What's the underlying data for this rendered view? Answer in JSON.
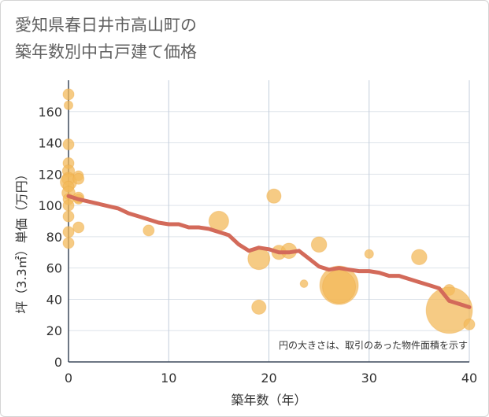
{
  "title_line1": "愛知県春日井市高山町の",
  "title_line2": "築年数別中古戸建て価格",
  "chart_data": {
    "type": "scatter",
    "title": "愛知県春日井市高山町の築年数別中古戸建て価格",
    "xlabel": "築年数（年）",
    "ylabel": "坪（3.3㎡）単価（万円）",
    "xlim": [
      0,
      40
    ],
    "ylim": [
      0,
      180
    ],
    "xticks": [
      0,
      10,
      20,
      30,
      40
    ],
    "yticks": [
      0,
      20,
      40,
      60,
      80,
      100,
      120,
      140,
      160
    ],
    "grid": true,
    "note": "円の大きさは、取引のあった物件面積を示す",
    "bubble_color": "#f3b95b",
    "line_color": "#d36a5a",
    "bubbles": [
      {
        "x": 0,
        "y": 171,
        "size": 1.0
      },
      {
        "x": 0,
        "y": 164,
        "size": 0.8
      },
      {
        "x": 0,
        "y": 139,
        "size": 1.0
      },
      {
        "x": 0,
        "y": 127,
        "size": 1.0
      },
      {
        "x": 0,
        "y": 122,
        "size": 1.1
      },
      {
        "x": 0,
        "y": 117,
        "size": 1.2
      },
      {
        "x": 0,
        "y": 115,
        "size": 1.5
      },
      {
        "x": 0,
        "y": 112,
        "size": 1.0
      },
      {
        "x": 0,
        "y": 108,
        "size": 1.2
      },
      {
        "x": 0,
        "y": 104,
        "size": 1.0
      },
      {
        "x": 0,
        "y": 100,
        "size": 1.0
      },
      {
        "x": 0,
        "y": 93,
        "size": 1.0
      },
      {
        "x": 0,
        "y": 83,
        "size": 1.0
      },
      {
        "x": 0,
        "y": 76,
        "size": 1.0
      },
      {
        "x": 1,
        "y": 119,
        "size": 0.9
      },
      {
        "x": 1,
        "y": 117,
        "size": 1.0
      },
      {
        "x": 1,
        "y": 105,
        "size": 1.0
      },
      {
        "x": 1,
        "y": 104,
        "size": 0.9
      },
      {
        "x": 1,
        "y": 86,
        "size": 1.0
      },
      {
        "x": 8,
        "y": 84,
        "size": 1.0
      },
      {
        "x": 15,
        "y": 90,
        "size": 1.8
      },
      {
        "x": 19,
        "y": 66,
        "size": 2.0
      },
      {
        "x": 19,
        "y": 35,
        "size": 1.3
      },
      {
        "x": 20.5,
        "y": 106,
        "size": 1.3
      },
      {
        "x": 21,
        "y": 70,
        "size": 1.3
      },
      {
        "x": 22,
        "y": 71,
        "size": 1.4
      },
      {
        "x": 23.5,
        "y": 50,
        "size": 0.7
      },
      {
        "x": 25,
        "y": 75,
        "size": 1.4
      },
      {
        "x": 27,
        "y": 49,
        "size": 3.5
      },
      {
        "x": 27,
        "y": 48,
        "size": 3.0
      },
      {
        "x": 30,
        "y": 69,
        "size": 0.8
      },
      {
        "x": 35,
        "y": 67,
        "size": 1.4
      },
      {
        "x": 38,
        "y": 46,
        "size": 1.0
      },
      {
        "x": 38,
        "y": 33,
        "size": 4.2
      },
      {
        "x": 40,
        "y": 24,
        "size": 1.0
      }
    ],
    "trend_line": {
      "x": [
        0,
        1,
        3,
        5,
        6,
        7,
        8,
        9,
        10,
        11,
        12,
        13,
        14,
        15,
        16,
        17,
        18,
        19,
        20,
        21,
        22,
        23,
        24,
        25,
        26,
        27,
        28,
        29,
        30,
        31,
        32,
        33,
        34,
        35,
        36,
        37,
        38,
        39,
        40
      ],
      "y": [
        106,
        104,
        101,
        98,
        95,
        93,
        91,
        89,
        88,
        88,
        86,
        86,
        85,
        83,
        81,
        75,
        71,
        73,
        72,
        70,
        70,
        71,
        66,
        61,
        59,
        60,
        59,
        58,
        58,
        57,
        55,
        55,
        53,
        51,
        49,
        47,
        39,
        37,
        35
      ]
    }
  }
}
